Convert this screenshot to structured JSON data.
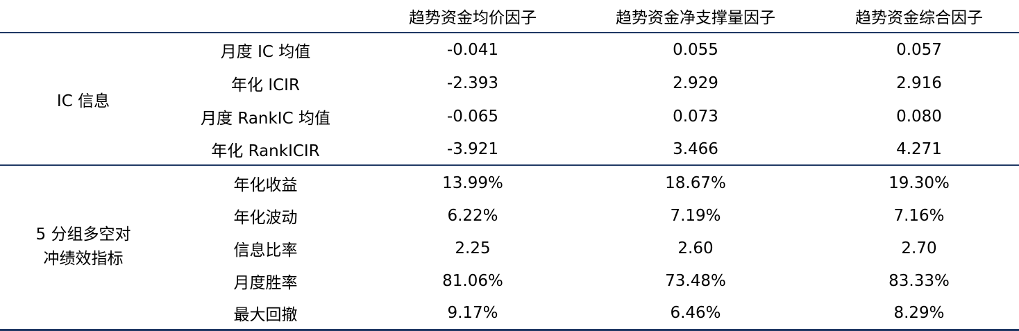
{
  "columns": [
    "趋势资金均价因子",
    "趋势资金净支撑量因子",
    "趋势资金综合因子"
  ],
  "groups": [
    {
      "label": "IC 信息",
      "rows": [
        {
          "metric": "月度 IC 均值",
          "values": [
            "-0.041",
            "0.055",
            "0.057"
          ]
        },
        {
          "metric": "年化 ICIR",
          "values": [
            "-2.393",
            "2.929",
            "2.916"
          ]
        },
        {
          "metric": "月度 RankIC 均值",
          "values": [
            "-0.065",
            "0.073",
            "0.080"
          ]
        },
        {
          "metric": "年化 RankICIR",
          "values": [
            "-3.921",
            "3.466",
            "4.271"
          ]
        }
      ]
    },
    {
      "label_lines": [
        "5 分组多空对",
        "冲绩效指标"
      ],
      "rows": [
        {
          "metric": "年化收益",
          "values": [
            "13.99%",
            "18.67%",
            "19.30%"
          ]
        },
        {
          "metric": "年化波动",
          "values": [
            "6.22%",
            "7.19%",
            "7.16%"
          ]
        },
        {
          "metric": "信息比率",
          "values": [
            "2.25",
            "2.60",
            "2.70"
          ]
        },
        {
          "metric": "月度胜率",
          "values": [
            "81.06%",
            "73.48%",
            "83.33%"
          ]
        },
        {
          "metric": "最大回撤",
          "values": [
            "9.17%",
            "6.46%",
            "8.29%"
          ]
        }
      ]
    }
  ],
  "colors": {
    "rule": "#1f3864",
    "text": "#000000"
  }
}
